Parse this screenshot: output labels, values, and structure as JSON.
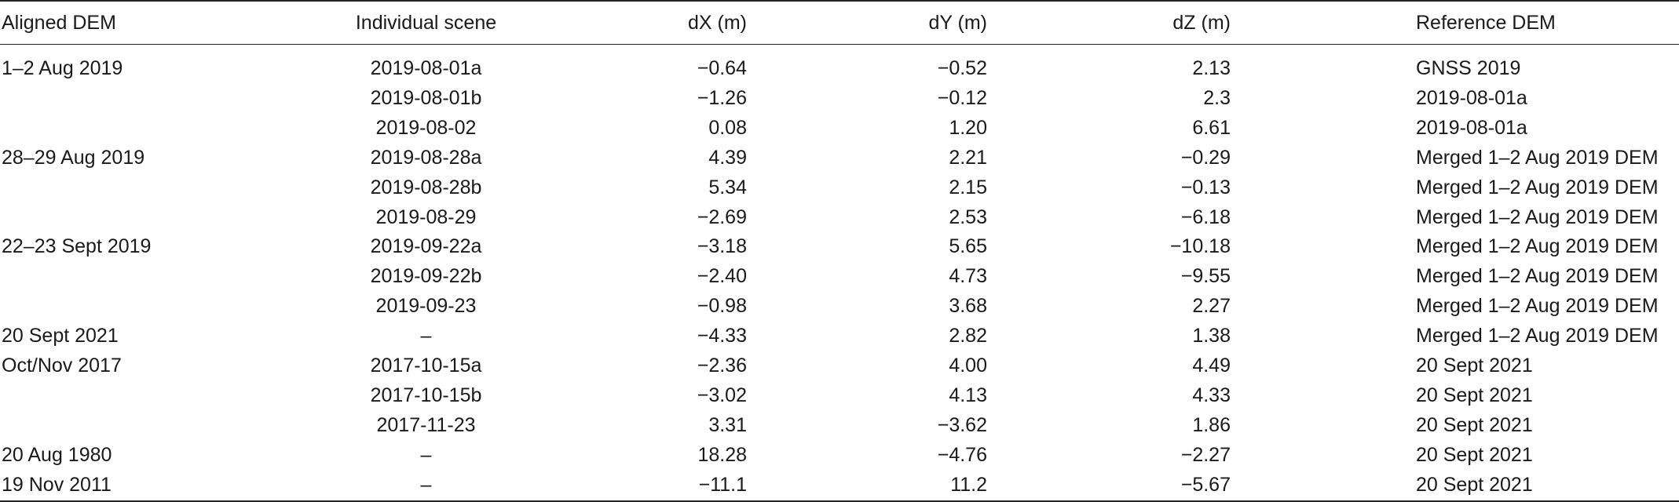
{
  "table": {
    "headers": {
      "aligned_dem": "Aligned DEM",
      "individual_scene": "Individual scene",
      "dx": "dX (m)",
      "dy": "dY (m)",
      "dz": "dZ (m)",
      "reference_dem": "Reference DEM"
    },
    "rows": [
      {
        "aligned_dem": "1–2 Aug 2019",
        "scene": "2019-08-01a",
        "dx": "−0.64",
        "dy": "−0.52",
        "dz": "2.13",
        "ref": "GNSS 2019"
      },
      {
        "aligned_dem": "",
        "scene": "2019-08-01b",
        "dx": "−1.26",
        "dy": "−0.12",
        "dz": "2.3",
        "ref": "2019-08-01a"
      },
      {
        "aligned_dem": "",
        "scene": "2019-08-02",
        "dx": "0.08",
        "dy": "1.20",
        "dz": "6.61",
        "ref": "2019-08-01a"
      },
      {
        "aligned_dem": "28–29 Aug 2019",
        "scene": "2019-08-28a",
        "dx": "4.39",
        "dy": "2.21",
        "dz": "−0.29",
        "ref": "Merged 1–2 Aug 2019 DEM"
      },
      {
        "aligned_dem": "",
        "scene": "2019-08-28b",
        "dx": "5.34",
        "dy": "2.15",
        "dz": "−0.13",
        "ref": "Merged 1–2 Aug 2019 DEM"
      },
      {
        "aligned_dem": "",
        "scene": "2019-08-29",
        "dx": "−2.69",
        "dy": "2.53",
        "dz": "−6.18",
        "ref": "Merged 1–2 Aug 2019 DEM"
      },
      {
        "aligned_dem": "22–23 Sept 2019",
        "scene": "2019-09-22a",
        "dx": "−3.18",
        "dy": "5.65",
        "dz": "−10.18",
        "ref": "Merged 1–2 Aug 2019 DEM"
      },
      {
        "aligned_dem": "",
        "scene": "2019-09-22b",
        "dx": "−2.40",
        "dy": "4.73",
        "dz": "−9.55",
        "ref": "Merged 1–2 Aug 2019 DEM"
      },
      {
        "aligned_dem": "",
        "scene": "2019-09-23",
        "dx": "−0.98",
        "dy": "3.68",
        "dz": "2.27",
        "ref": "Merged 1–2 Aug 2019 DEM"
      },
      {
        "aligned_dem": "20 Sept 2021",
        "scene": "–",
        "dx": "−4.33",
        "dy": "2.82",
        "dz": "1.38",
        "ref": "Merged 1–2 Aug 2019 DEM"
      },
      {
        "aligned_dem": "Oct/Nov 2017",
        "scene": "2017-10-15a",
        "dx": "−2.36",
        "dy": "4.00",
        "dz": "4.49",
        "ref": "20 Sept 2021"
      },
      {
        "aligned_dem": "",
        "scene": "2017-10-15b",
        "dx": "−3.02",
        "dy": "4.13",
        "dz": "4.33",
        "ref": "20 Sept 2021"
      },
      {
        "aligned_dem": "",
        "scene": "2017-11-23",
        "dx": "3.31",
        "dy": "−3.62",
        "dz": "1.86",
        "ref": "20 Sept 2021"
      },
      {
        "aligned_dem": "20 Aug 1980",
        "scene": "–",
        "dx": "18.28",
        "dy": "−4.76",
        "dz": "−2.27",
        "ref": "20 Sept 2021"
      },
      {
        "aligned_dem": "19 Nov 2011",
        "scene": "–",
        "dx": "−11.1",
        "dy": "11.2",
        "dz": "−5.67",
        "ref": "20 Sept 2021"
      }
    ]
  }
}
